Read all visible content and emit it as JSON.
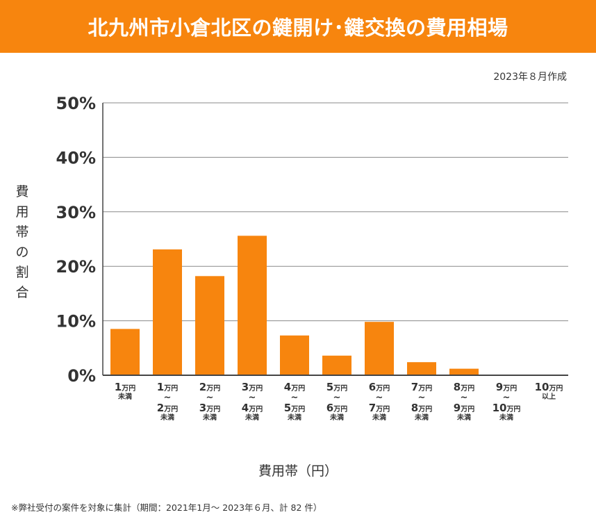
{
  "header": {
    "title": "北九州市小倉北区の鍵開け･鍵交換の費用相場"
  },
  "created_date": "2023年８月作成",
  "footnote": "※弊社受付の案件を対象に集計（期間：2021年1月～ 2023年６月、計 82 件）",
  "colors": {
    "banner": "#f7850e",
    "bar": "#f7850e",
    "grid": "#888888"
  },
  "chart_data": {
    "type": "bar",
    "title": "北九州市小倉北区の鍵開け･鍵交換の費用相場",
    "ylabel": "費用帯の割合",
    "xlabel": "費用帯（円）",
    "ylim": [
      0,
      50
    ],
    "yticks": [
      "0%",
      "10%",
      "20%",
      "30%",
      "40%",
      "50%"
    ],
    "grid": true,
    "legend": "none",
    "categories": [
      {
        "lines": [
          [
            "1",
            "万円"
          ],
          [
            "未満"
          ]
        ]
      },
      {
        "lines": [
          [
            "1",
            "万円"
          ],
          [
            "~"
          ],
          [
            "2",
            "万円"
          ],
          [
            "未満"
          ]
        ]
      },
      {
        "lines": [
          [
            "2",
            "万円"
          ],
          [
            "~"
          ],
          [
            "3",
            "万円"
          ],
          [
            "未満"
          ]
        ]
      },
      {
        "lines": [
          [
            "3",
            "万円"
          ],
          [
            "~"
          ],
          [
            "4",
            "万円"
          ],
          [
            "未満"
          ]
        ]
      },
      {
        "lines": [
          [
            "4",
            "万円"
          ],
          [
            "~"
          ],
          [
            "5",
            "万円"
          ],
          [
            "未満"
          ]
        ]
      },
      {
        "lines": [
          [
            "5",
            "万円"
          ],
          [
            "~"
          ],
          [
            "6",
            "万円"
          ],
          [
            "未満"
          ]
        ]
      },
      {
        "lines": [
          [
            "6",
            "万円"
          ],
          [
            "~"
          ],
          [
            "7",
            "万円"
          ],
          [
            "未満"
          ]
        ]
      },
      {
        "lines": [
          [
            "7",
            "万円"
          ],
          [
            "~"
          ],
          [
            "8",
            "万円"
          ],
          [
            "未満"
          ]
        ]
      },
      {
        "lines": [
          [
            "8",
            "万円"
          ],
          [
            "~"
          ],
          [
            "9",
            "万円"
          ],
          [
            "未満"
          ]
        ]
      },
      {
        "lines": [
          [
            "9",
            "万円"
          ],
          [
            "~"
          ],
          [
            "10",
            "万円"
          ],
          [
            "未満"
          ]
        ]
      },
      {
        "lines": [
          [
            "10",
            "万円"
          ],
          [
            "以上"
          ]
        ]
      }
    ],
    "values": [
      8.5,
      23.1,
      18.2,
      25.6,
      7.3,
      3.6,
      9.8,
      2.4,
      1.2,
      0,
      0
    ]
  }
}
